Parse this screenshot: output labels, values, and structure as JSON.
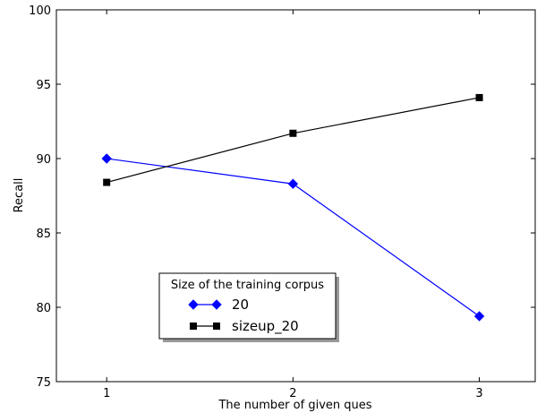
{
  "chart_data": {
    "type": "line",
    "title": "",
    "xlabel": "The number of given ques",
    "ylabel": "Recall",
    "x": [
      1,
      2,
      3
    ],
    "xlim": [
      0.73,
      3.3
    ],
    "ylim": [
      75,
      100
    ],
    "xticks": [
      1,
      2,
      3
    ],
    "yticks": [
      75,
      80,
      85,
      90,
      95,
      100
    ],
    "grid": false,
    "legend": {
      "title": "Size of the training corpus",
      "placement": "lower-center"
    },
    "series": [
      {
        "name": "20",
        "values": [
          90.0,
          88.3,
          79.4
        ],
        "color": "#0000ff",
        "marker": "diamond"
      },
      {
        "name": "sizeup_20",
        "values": [
          88.4,
          91.7,
          94.1
        ],
        "color": "#000000",
        "marker": "square"
      }
    ]
  }
}
